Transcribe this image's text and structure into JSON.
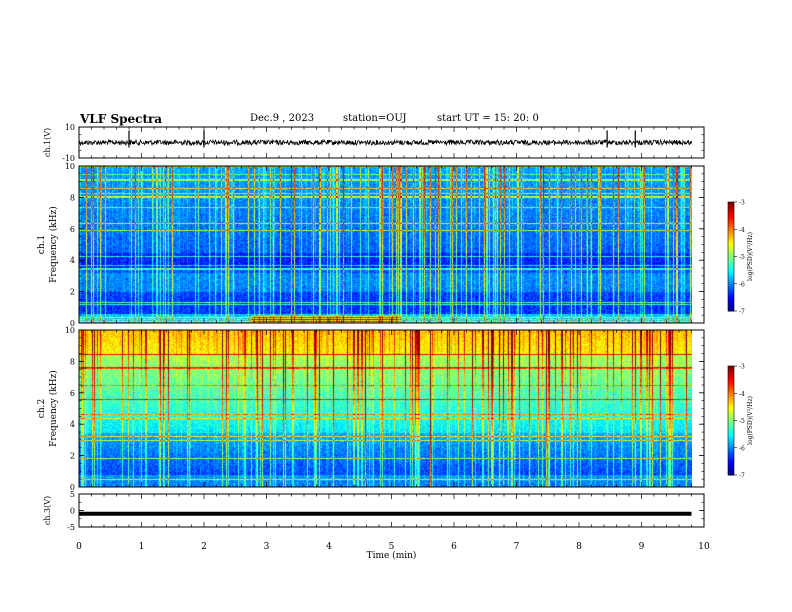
{
  "header": {
    "title": "VLF Spectra",
    "date": "Dec.9 , 2023",
    "station": "station=OUJ",
    "start": "start UT = 15: 20: 0"
  },
  "chart_data": [
    {
      "type": "line",
      "name": "ch1-waveform",
      "ylabel": "ch.1(V)",
      "ylim": [
        -10,
        10
      ],
      "yticks": [
        "10",
        "-10"
      ],
      "xlim": [
        0,
        10
      ],
      "baseline": 0,
      "spikes_x": [
        0.8,
        2.0,
        8.45,
        8.9
      ]
    },
    {
      "type": "heatmap",
      "name": "ch1-spectrogram",
      "ylabel": "ch.1 Frequency (kHz)",
      "ylim": [
        0,
        10
      ],
      "yticks": [
        "0",
        "2",
        "4",
        "6",
        "8",
        "10"
      ],
      "xlim": [
        0,
        9.8
      ],
      "colorbar": {
        "label": "log(PSD)(V²/Hz)",
        "range": [
          -7,
          -3
        ],
        "ticks": [
          "-3",
          "-4",
          "-5",
          "-6",
          "-7"
        ]
      }
    },
    {
      "type": "heatmap",
      "name": "ch2-spectrogram",
      "ylabel": "ch.2 Frequency (kHz)",
      "ylim": [
        0,
        10
      ],
      "yticks": [
        "0",
        "2",
        "4",
        "6",
        "8",
        "10"
      ],
      "xlim": [
        0,
        9.8
      ],
      "colorbar": {
        "label": "log(PSD)(V²/Hz)",
        "range": [
          -7,
          -3
        ],
        "ticks": [
          "-3",
          "-4",
          "-5",
          "-6",
          "-7"
        ]
      }
    },
    {
      "type": "line",
      "name": "ch3-waveform",
      "ylabel": "ch.3(V)",
      "ylim": [
        -5,
        5
      ],
      "yticks": [
        "5",
        "0",
        "-5"
      ],
      "xlim": [
        0,
        10
      ],
      "baseline": -1
    }
  ],
  "xaxis": {
    "label": "Time (min)",
    "range": [
      0,
      10
    ],
    "ticks": [
      "0",
      "1",
      "2",
      "3",
      "4",
      "5",
      "6",
      "7",
      "8",
      "9",
      "10"
    ]
  }
}
